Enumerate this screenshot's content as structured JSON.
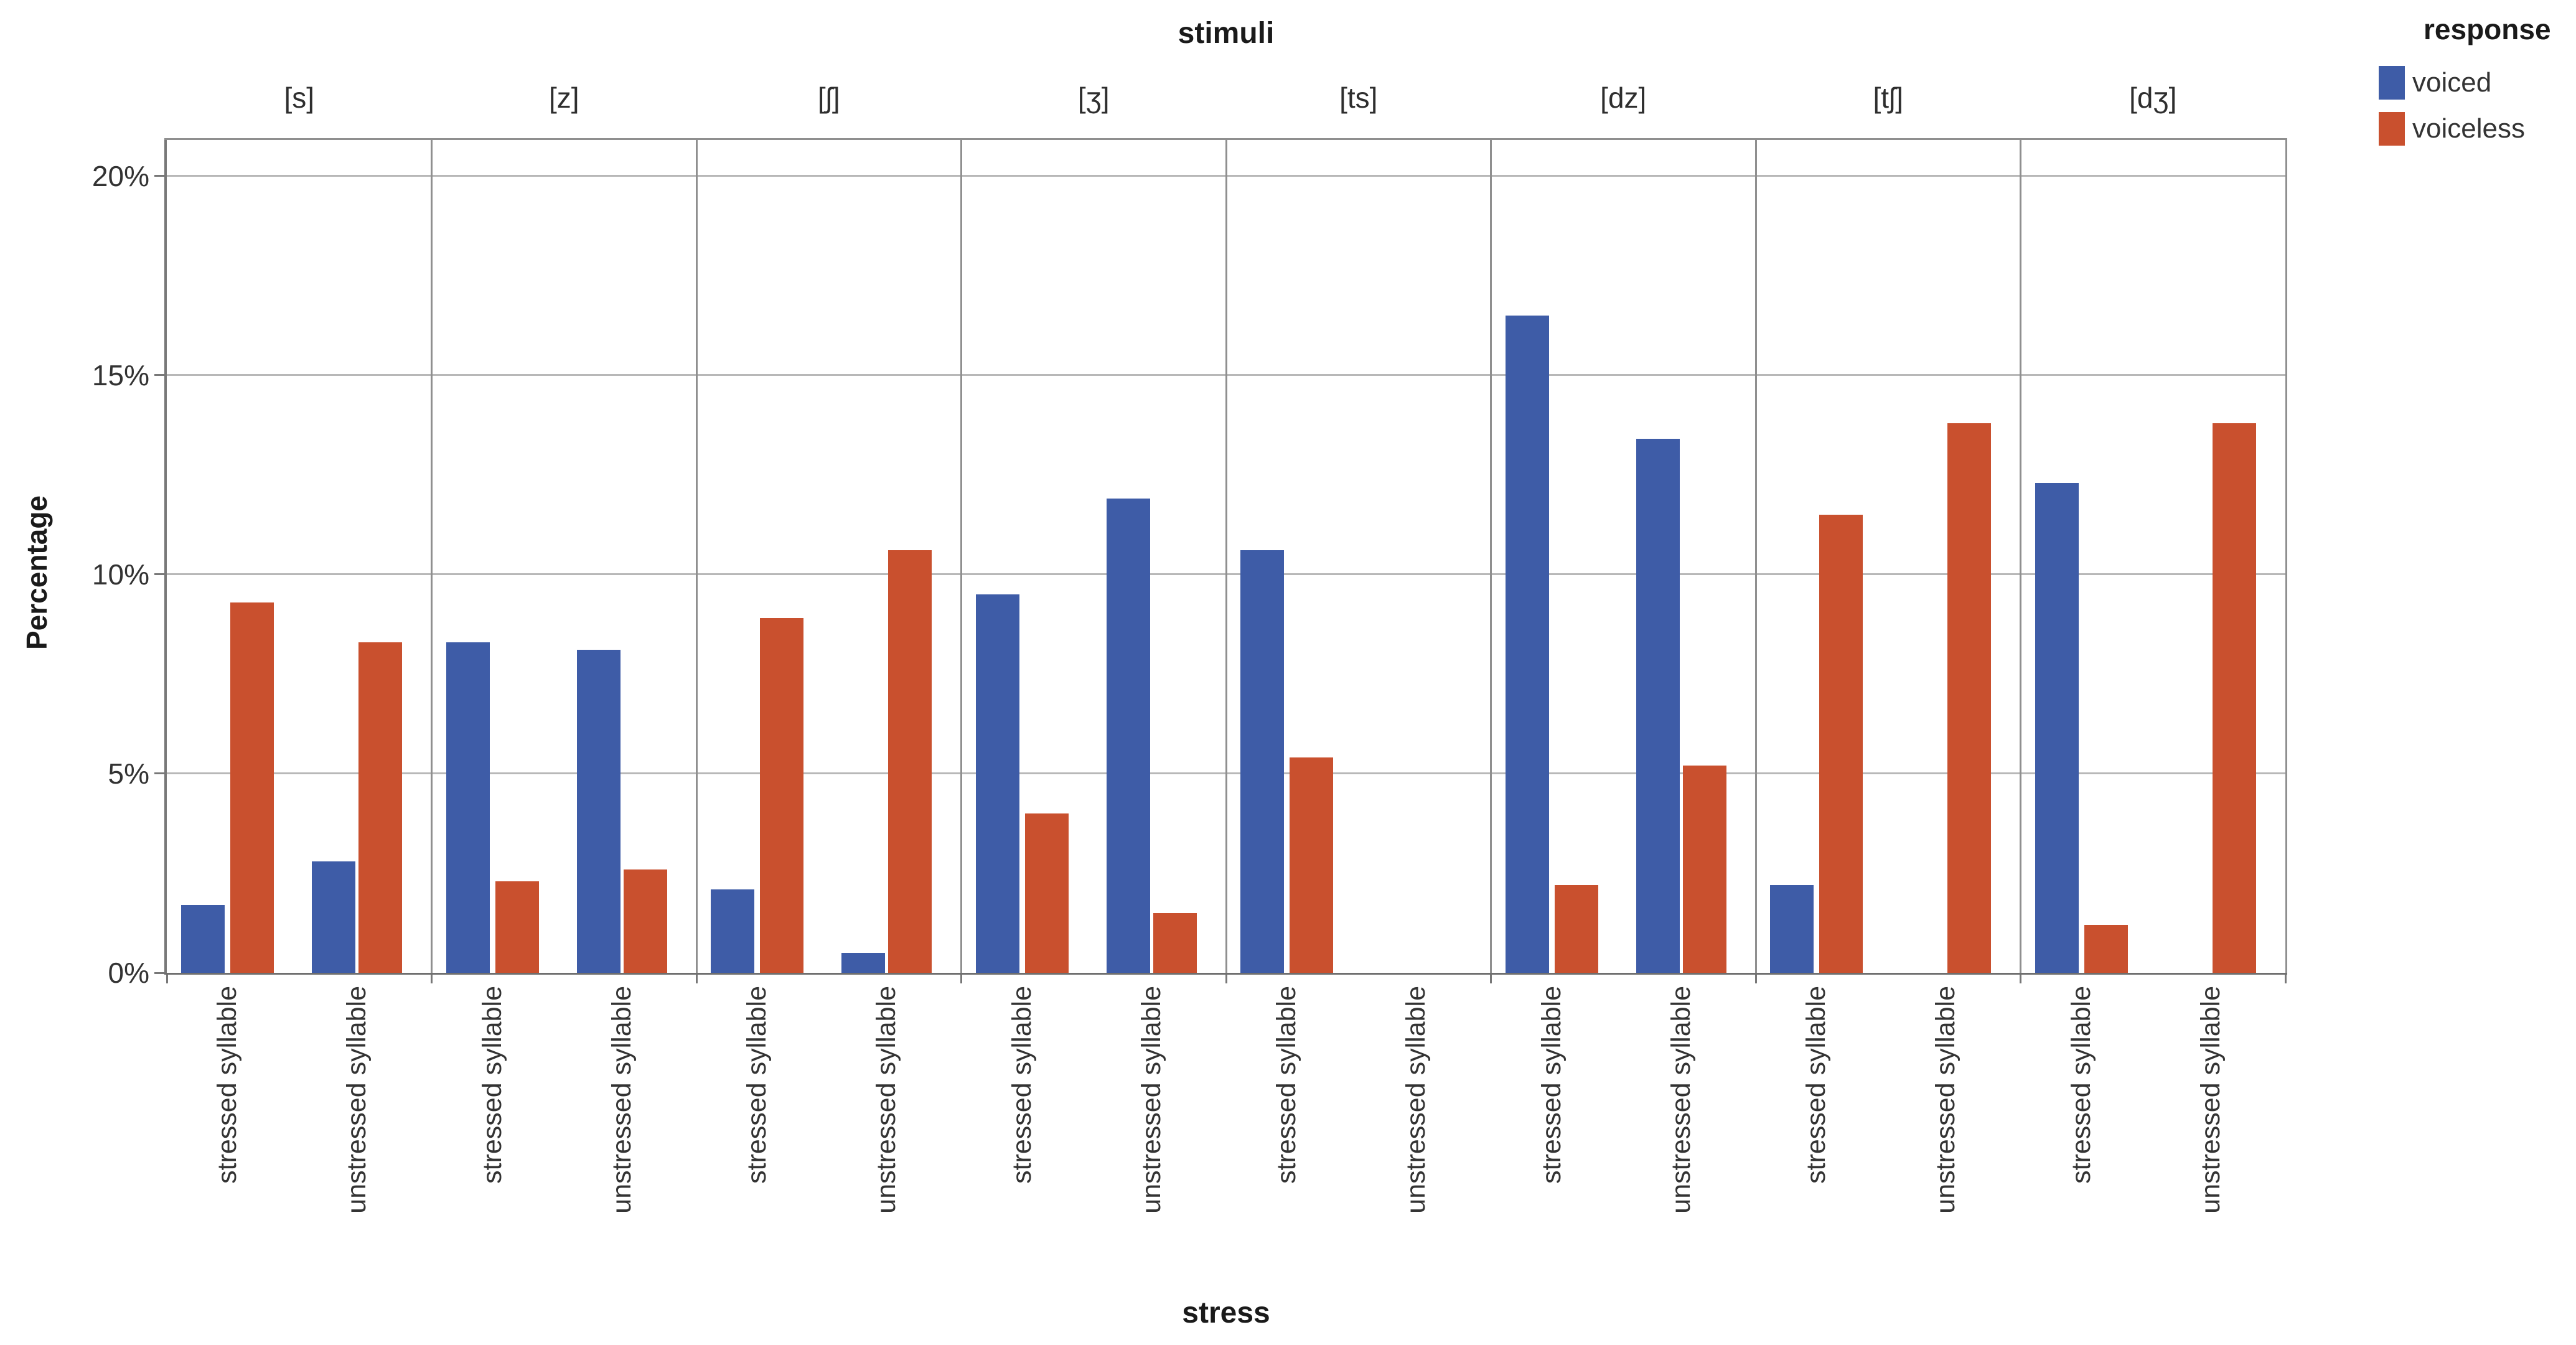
{
  "chart_data": {
    "type": "bar",
    "title": "stimuli",
    "xlabel": "stress",
    "ylabel": "Percentage",
    "ylim": [
      0,
      20.9
    ],
    "grid": true,
    "legend_title": "response",
    "legend_position": "top-right",
    "yticks": [
      {
        "label": "0%",
        "value": 0
      },
      {
        "label": "5%",
        "value": 5
      },
      {
        "label": "10%",
        "value": 10
      },
      {
        "label": "15%",
        "value": 15
      },
      {
        "label": "20%",
        "value": 20
      }
    ],
    "series": [
      {
        "name": "voiced",
        "color": "#3E5CA7"
      },
      {
        "name": "voiceless",
        "color": "#C9502E"
      }
    ],
    "group_labels": [
      "stressed syllable",
      "unstressed syllable"
    ],
    "panels": [
      {
        "stimulus": "[s]",
        "groups": [
          {
            "stress": "stressed syllable",
            "voiced": 1.7,
            "voiceless": 9.3
          },
          {
            "stress": "unstressed syllable",
            "voiced": 2.8,
            "voiceless": 8.3
          }
        ]
      },
      {
        "stimulus": "[z]",
        "groups": [
          {
            "stress": "stressed syllable",
            "voiced": 8.3,
            "voiceless": 2.3
          },
          {
            "stress": "unstressed syllable",
            "voiced": 8.1,
            "voiceless": 2.6
          }
        ]
      },
      {
        "stimulus": "[ʃ]",
        "groups": [
          {
            "stress": "stressed syllable",
            "voiced": 2.1,
            "voiceless": 8.9
          },
          {
            "stress": "unstressed syllable",
            "voiced": 0.5,
            "voiceless": 10.6
          }
        ]
      },
      {
        "stimulus": "[ʒ]",
        "groups": [
          {
            "stress": "stressed syllable",
            "voiced": 9.5,
            "voiceless": 4.0
          },
          {
            "stress": "unstressed syllable",
            "voiced": 11.9,
            "voiceless": 1.5
          }
        ]
      },
      {
        "stimulus": "[ts]",
        "groups": [
          {
            "stress": "stressed syllable",
            "voiced": 10.6,
            "voiceless": 5.4
          },
          {
            "stress": "unstressed syllable",
            "voiced": 0,
            "voiceless": 0
          }
        ]
      },
      {
        "stimulus": "[dz]",
        "groups": [
          {
            "stress": "stressed syllable",
            "voiced": 16.5,
            "voiceless": 2.2
          },
          {
            "stress": "unstressed syllable",
            "voiced": 13.4,
            "voiceless": 5.2
          }
        ]
      },
      {
        "stimulus": "[tʃ]",
        "groups": [
          {
            "stress": "stressed syllable",
            "voiced": 2.2,
            "voiceless": 11.5
          },
          {
            "stress": "unstressed syllable",
            "voiced": 0,
            "voiceless": 13.8
          }
        ]
      },
      {
        "stimulus": "[dʒ]",
        "groups": [
          {
            "stress": "stressed syllable",
            "voiced": 12.3,
            "voiceless": 1.2
          },
          {
            "stress": "unstressed syllable",
            "voiced": 0,
            "voiceless": 13.8
          }
        ]
      }
    ]
  },
  "legend": {
    "title": "response",
    "items": [
      {
        "label": "voiced",
        "color": "#3E5CA7"
      },
      {
        "label": "voiceless",
        "color": "#C9502E"
      }
    ]
  },
  "colors": {
    "voiced": "#3E5CA7",
    "voiceless": "#C9502E",
    "gridline": "#b8b8b8",
    "frame": "#8f8f8f",
    "axis": "#787878",
    "text": "#333333"
  }
}
